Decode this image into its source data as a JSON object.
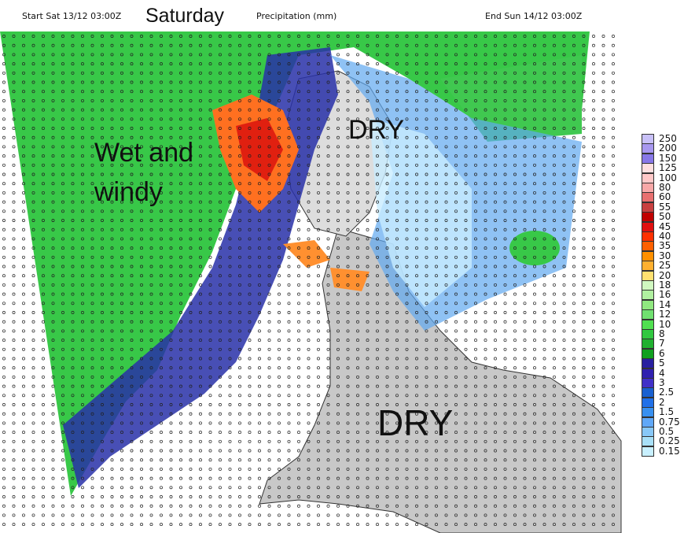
{
  "header": {
    "start": "Start Sat 13/12 03:00Z",
    "day": "Saturday",
    "title": "Precipitation (mm)",
    "end": "End Sun 14/12 03:00Z"
  },
  "annotations": {
    "wet_line1": "Wet and",
    "wet_line2": "windy",
    "dry_north": "DRY",
    "dry_south": "DRY"
  },
  "legend": {
    "labels": [
      "250",
      "200",
      "150",
      "125",
      "100",
      "80",
      "60",
      "55",
      "50",
      "45",
      "40",
      "35",
      "30",
      "25",
      "20",
      "18",
      "16",
      "14",
      "12",
      "10",
      "8",
      "7",
      "6",
      "5",
      "4",
      "3",
      "2.5",
      "2",
      "1.5",
      "0.75",
      "0.5",
      "0.25",
      "0.15"
    ],
    "colors": [
      "#c8c0f8",
      "#a898f0",
      "#8878e8",
      "#ffe0e0",
      "#ffc8c8",
      "#f8a8a8",
      "#e87070",
      "#c84040",
      "#c00000",
      "#e01010",
      "#ff3000",
      "#ff6000",
      "#ff9000",
      "#ffb030",
      "#ffe070",
      "#d0f8c0",
      "#b0f0a0",
      "#90e880",
      "#70e070",
      "#50e050",
      "#30c840",
      "#20b030",
      "#10a020",
      "#2820a0",
      "#3020b0",
      "#4030c8",
      "#1860d0",
      "#2070e8",
      "#3890f0",
      "#60a8f8",
      "#88c8f8",
      "#a8e0f8",
      "#c8f0ff"
    ]
  }
}
